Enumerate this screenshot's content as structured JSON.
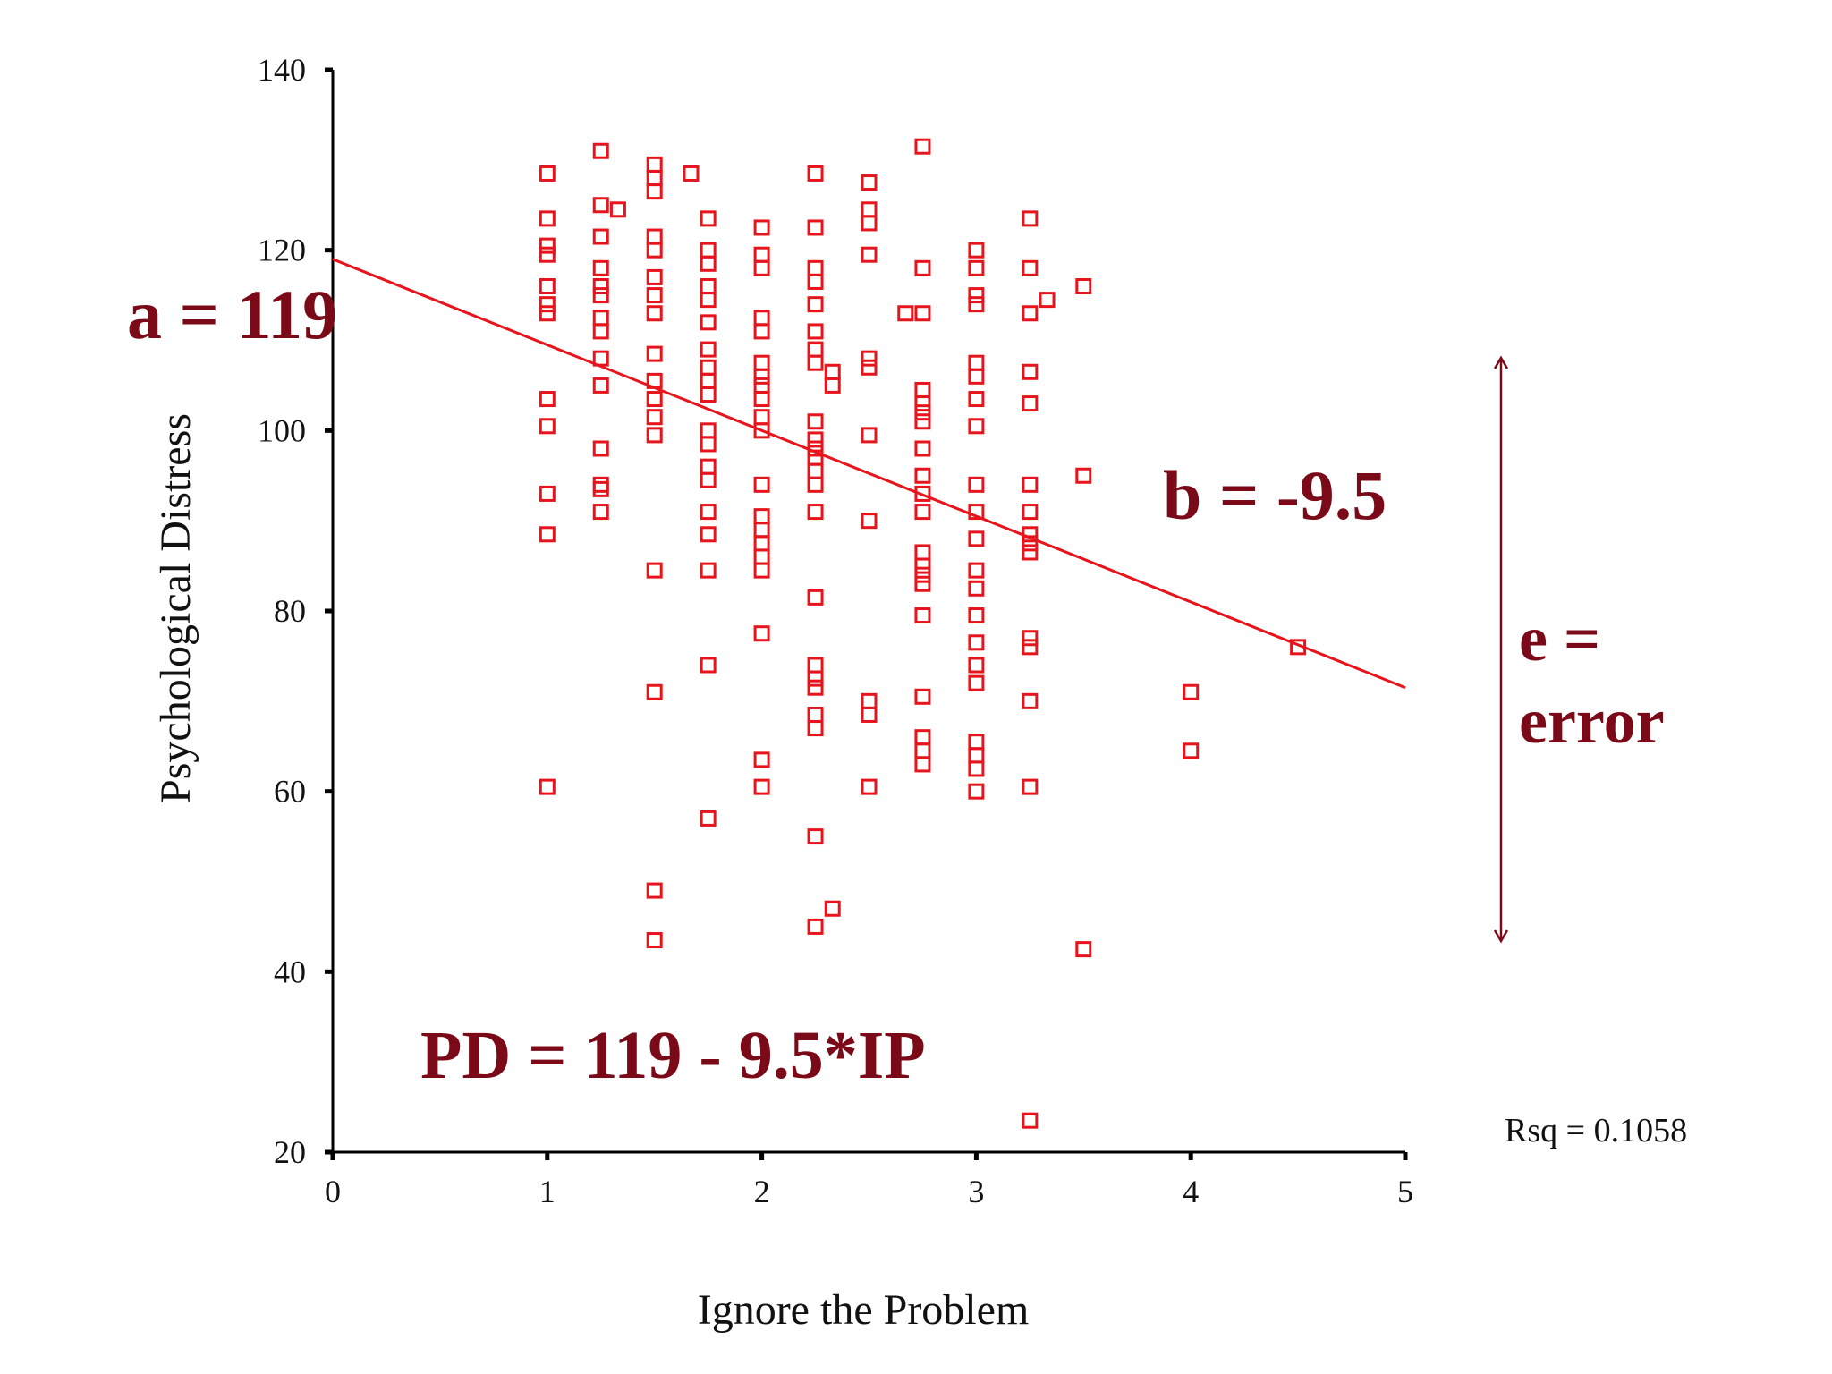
{
  "chart_data": {
    "type": "scatter",
    "title": "",
    "xlabel": "Ignore the Problem",
    "ylabel": "Psychological Distress",
    "xlim": [
      0,
      5
    ],
    "ylim": [
      20,
      140
    ],
    "x_ticks": [
      "0",
      "1",
      "2",
      "3",
      "4",
      "5"
    ],
    "y_ticks": [
      "20",
      "40",
      "60",
      "80",
      "100",
      "120",
      "140"
    ],
    "grid": false,
    "marker": "open-square",
    "marker_color": "#e8141c",
    "regression_line": {
      "intercept": 119,
      "slope": -9.5,
      "x_range": [
        0,
        5
      ],
      "color": "#e8141c"
    },
    "annotations": {
      "intercept_label": "a = 119",
      "slope_label": "b = -9.5",
      "error_label_line1": "e =",
      "error_label_line2": "error",
      "equation": "PD = 119 - 9.5*IP",
      "rsq": "Rsq = 0.1058",
      "annotation_color": "#7a0a18"
    },
    "points": [
      [
        1,
        128.5
      ],
      [
        1,
        123.5
      ],
      [
        1,
        120.5
      ],
      [
        1,
        119.5
      ],
      [
        1,
        116
      ],
      [
        1,
        114
      ],
      [
        1,
        113
      ],
      [
        1,
        103.5
      ],
      [
        1,
        100.5
      ],
      [
        1,
        93
      ],
      [
        1,
        88.5
      ],
      [
        1,
        60.5
      ],
      [
        1.25,
        131
      ],
      [
        1.25,
        125
      ],
      [
        1.25,
        121.5
      ],
      [
        1.25,
        118
      ],
      [
        1.25,
        116
      ],
      [
        1.25,
        115
      ],
      [
        1.25,
        112.5
      ],
      [
        1.25,
        111
      ],
      [
        1.25,
        108
      ],
      [
        1.25,
        105
      ],
      [
        1.25,
        98
      ],
      [
        1.25,
        94
      ],
      [
        1.25,
        93.5
      ],
      [
        1.25,
        91
      ],
      [
        1.33,
        124.5
      ],
      [
        1.5,
        129.5
      ],
      [
        1.5,
        128
      ],
      [
        1.5,
        126.5
      ],
      [
        1.5,
        121.5
      ],
      [
        1.5,
        120
      ],
      [
        1.5,
        117
      ],
      [
        1.5,
        115
      ],
      [
        1.5,
        113
      ],
      [
        1.5,
        108.5
      ],
      [
        1.5,
        105.5
      ],
      [
        1.5,
        103.5
      ],
      [
        1.5,
        101.5
      ],
      [
        1.5,
        99.5
      ],
      [
        1.5,
        84.5
      ],
      [
        1.5,
        71
      ],
      [
        1.5,
        49
      ],
      [
        1.5,
        43.5
      ],
      [
        1.67,
        128.5
      ],
      [
        1.75,
        123.5
      ],
      [
        1.75,
        120
      ],
      [
        1.75,
        118.5
      ],
      [
        1.75,
        116
      ],
      [
        1.75,
        114.5
      ],
      [
        1.75,
        112
      ],
      [
        1.75,
        109
      ],
      [
        1.75,
        107
      ],
      [
        1.75,
        105.5
      ],
      [
        1.75,
        104
      ],
      [
        1.75,
        100
      ],
      [
        1.75,
        98.5
      ],
      [
        1.75,
        96
      ],
      [
        1.75,
        94.5
      ],
      [
        1.75,
        91
      ],
      [
        1.75,
        88.5
      ],
      [
        1.75,
        84.5
      ],
      [
        1.75,
        74
      ],
      [
        1.75,
        57
      ],
      [
        2,
        122.5
      ],
      [
        2,
        119.5
      ],
      [
        2,
        118
      ],
      [
        2,
        112.5
      ],
      [
        2,
        111
      ],
      [
        2,
        107.5
      ],
      [
        2,
        106
      ],
      [
        2,
        105
      ],
      [
        2,
        103.5
      ],
      [
        2,
        101.5
      ],
      [
        2,
        100
      ],
      [
        2,
        94
      ],
      [
        2,
        90.5
      ],
      [
        2,
        89
      ],
      [
        2,
        87.5
      ],
      [
        2,
        86
      ],
      [
        2,
        84.5
      ],
      [
        2,
        77.5
      ],
      [
        2,
        63.5
      ],
      [
        2,
        60.5
      ],
      [
        2.25,
        128.5
      ],
      [
        2.25,
        122.5
      ],
      [
        2.25,
        118
      ],
      [
        2.25,
        116.5
      ],
      [
        2.25,
        114
      ],
      [
        2.25,
        111
      ],
      [
        2.25,
        109
      ],
      [
        2.25,
        107.5
      ],
      [
        2.25,
        101
      ],
      [
        2.25,
        99
      ],
      [
        2.25,
        98
      ],
      [
        2.25,
        97
      ],
      [
        2.25,
        95.5
      ],
      [
        2.25,
        94
      ],
      [
        2.25,
        91
      ],
      [
        2.25,
        81.5
      ],
      [
        2.25,
        74
      ],
      [
        2.25,
        72.5
      ],
      [
        2.25,
        71.5
      ],
      [
        2.25,
        68.5
      ],
      [
        2.25,
        67
      ],
      [
        2.25,
        55
      ],
      [
        2.25,
        45
      ],
      [
        2.33,
        106.5
      ],
      [
        2.33,
        105
      ],
      [
        2.33,
        47
      ],
      [
        2.5,
        127.5
      ],
      [
        2.5,
        124.5
      ],
      [
        2.5,
        123
      ],
      [
        2.5,
        119.5
      ],
      [
        2.5,
        108
      ],
      [
        2.5,
        107
      ],
      [
        2.5,
        99.5
      ],
      [
        2.5,
        90
      ],
      [
        2.5,
        70
      ],
      [
        2.5,
        68.5
      ],
      [
        2.5,
        60.5
      ],
      [
        2.67,
        113
      ],
      [
        2.75,
        131.5
      ],
      [
        2.75,
        118
      ],
      [
        2.75,
        113
      ],
      [
        2.75,
        104.5
      ],
      [
        2.75,
        103
      ],
      [
        2.75,
        102
      ],
      [
        2.75,
        101
      ],
      [
        2.75,
        98
      ],
      [
        2.75,
        95
      ],
      [
        2.75,
        93
      ],
      [
        2.75,
        91
      ],
      [
        2.75,
        86.5
      ],
      [
        2.75,
        85
      ],
      [
        2.75,
        84
      ],
      [
        2.75,
        83
      ],
      [
        2.75,
        79.5
      ],
      [
        2.75,
        70.5
      ],
      [
        2.75,
        66
      ],
      [
        2.75,
        64.5
      ],
      [
        2.75,
        63
      ],
      [
        3,
        120
      ],
      [
        3,
        118
      ],
      [
        3,
        115
      ],
      [
        3,
        114
      ],
      [
        3,
        107.5
      ],
      [
        3,
        106
      ],
      [
        3,
        103.5
      ],
      [
        3,
        100.5
      ],
      [
        3,
        94
      ],
      [
        3,
        91
      ],
      [
        3,
        88
      ],
      [
        3,
        84.5
      ],
      [
        3,
        82.5
      ],
      [
        3,
        79.5
      ],
      [
        3,
        76.5
      ],
      [
        3,
        74
      ],
      [
        3,
        72
      ],
      [
        3,
        65.5
      ],
      [
        3,
        64
      ],
      [
        3,
        62.5
      ],
      [
        3,
        60
      ],
      [
        3.25,
        123.5
      ],
      [
        3.25,
        118
      ],
      [
        3.25,
        113
      ],
      [
        3.25,
        106.5
      ],
      [
        3.25,
        103
      ],
      [
        3.25,
        94
      ],
      [
        3.25,
        91
      ],
      [
        3.25,
        88.5
      ],
      [
        3.25,
        87.5
      ],
      [
        3.25,
        86.5
      ],
      [
        3.25,
        77
      ],
      [
        3.25,
        76
      ],
      [
        3.25,
        70
      ],
      [
        3.25,
        60.5
      ],
      [
        3.25,
        23.5
      ],
      [
        3.33,
        114.5
      ],
      [
        3.5,
        116
      ],
      [
        3.5,
        95
      ],
      [
        3.5,
        42.5
      ],
      [
        4,
        71
      ],
      [
        4,
        64.5
      ],
      [
        4.5,
        76
      ]
    ]
  }
}
